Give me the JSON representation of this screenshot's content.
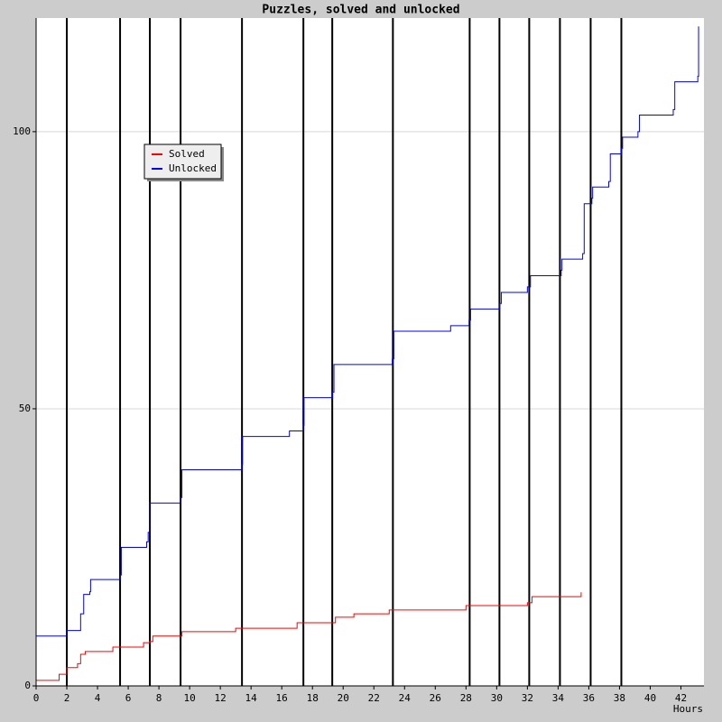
{
  "chart_data": {
    "type": "line",
    "title": "Puzzles, solved and unlocked",
    "x_label": "Hours",
    "xlim": [
      0,
      43.5
    ],
    "ylim": [
      0,
      120.5
    ],
    "xticks": [
      0,
      2,
      4,
      6,
      8,
      10,
      12,
      14,
      16,
      18,
      20,
      22,
      24,
      26,
      28,
      30,
      32,
      34,
      36,
      38,
      40,
      42
    ],
    "yticks": [
      0,
      50,
      100
    ],
    "grid": true,
    "step": true,
    "legend": "upper left",
    "markers": [
      2,
      5.47,
      7.41,
      9.41,
      13.41,
      17.41,
      19.29,
      23.24,
      28.24,
      30.18,
      32.12,
      34.12,
      36.12,
      38.12
    ],
    "marker_color": "#000000",
    "series": [
      {
        "name": "Solved",
        "color": "#ff0000",
        "x": [
          0,
          1.5,
          2,
          2.7,
          2.9,
          3.2,
          5,
          7,
          7.4,
          7.6,
          9.5,
          13,
          17,
          19.5,
          20.7,
          23,
          28,
          32,
          32.3,
          35.5
        ],
        "values": [
          1,
          2.1,
          3.3,
          4,
          5.7,
          6.2,
          7,
          7.8,
          8,
          9,
          9.8,
          10.4,
          11.4,
          12.4,
          13,
          13.7,
          14.5,
          15,
          16.1,
          16.9
        ]
      },
      {
        "name": "Unlocked",
        "color": "#0000ff",
        "x": [
          0,
          2,
          2.9,
          3.1,
          3.5,
          3.55,
          5.5,
          5.55,
          7.2,
          7.3,
          7.4,
          9.4,
          9.5,
          13.4,
          13.45,
          16.5,
          17.4,
          17.45,
          19.3,
          19.4,
          23.2,
          23.3,
          27,
          28.2,
          28.3,
          30.2,
          30.3,
          32,
          32.2,
          34.2,
          34.25,
          35.6,
          35.7,
          36.2,
          36.25,
          37.3,
          37.4,
          38.1,
          38.2,
          39.2,
          39.3,
          41.5,
          41.6,
          43.1,
          43.15
        ],
        "values": [
          9,
          10,
          13,
          16.5,
          17,
          19.2,
          20,
          25,
          26,
          27.7,
          33,
          34,
          39,
          40,
          45,
          46,
          47,
          52,
          53,
          58,
          59,
          64,
          65,
          66,
          68,
          69,
          71,
          72,
          74,
          75,
          77,
          78,
          87,
          88,
          90,
          91,
          96,
          97,
          99,
          100,
          103,
          104,
          109,
          110,
          119
        ]
      }
    ]
  }
}
